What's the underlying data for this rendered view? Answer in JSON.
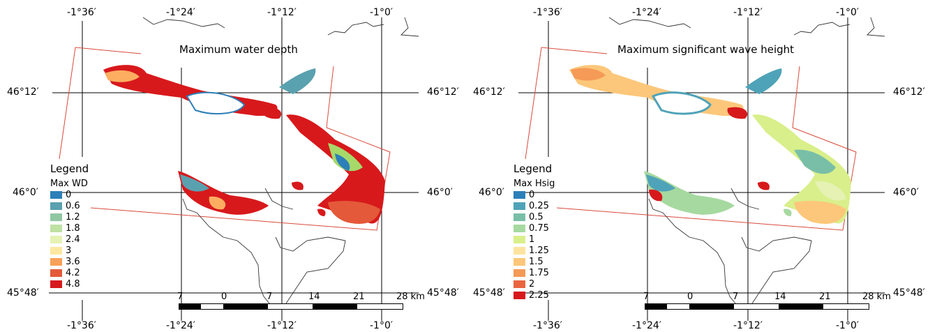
{
  "colors": {
    "grid": "#000000",
    "frame": "#d84a3a",
    "coast": "#333333",
    "wd_core": "#d7191c",
    "wd_mid": "#fdae61",
    "wd_edge": "#2c7fb8",
    "wd_green": "#a6d96a",
    "hs_core": "#f4a582",
    "hs_mid": "#d9ef8b",
    "hs_edge": "#4fa3b8",
    "hs_green": "#91cf60"
  },
  "panels": [
    {
      "title": "Maximum water depth",
      "legend_title": "Legend",
      "legend_subtitle": "Max WD",
      "legend": [
        {
          "label": "0",
          "color": "#2c7fb8"
        },
        {
          "label": "0.6",
          "color": "#5aa1b0"
        },
        {
          "label": "1.2",
          "color": "#8fc7a3"
        },
        {
          "label": "1.8",
          "color": "#bfe1a3"
        },
        {
          "label": "2.4",
          "color": "#e5f2b4"
        },
        {
          "label": "3",
          "color": "#fde8a1"
        },
        {
          "label": "3.6",
          "color": "#f9a059"
        },
        {
          "label": "4.2",
          "color": "#e4593a"
        },
        {
          "label": "4.8",
          "color": "#d7191c"
        }
      ],
      "top_lon": [
        "-1°36′",
        "-1°24′",
        "-1°12′",
        "-1°0′"
      ],
      "bottom_lon": [
        "-1°36′",
        "-1°24′",
        "-1°12′",
        "-1°0′"
      ],
      "left_lat": [
        "46°12′",
        "46°0′",
        "45°48′"
      ],
      "right_lat": [
        "46°12′",
        "46°0′",
        "45°48′"
      ],
      "scale_labels": [
        "7",
        "0",
        "7",
        "14",
        "21",
        "28 km"
      ]
    },
    {
      "title": "Maximum significant wave height",
      "legend_title": "Legend",
      "legend_subtitle": "Max Hsig",
      "legend": [
        {
          "label": "0",
          "color": "#2c7fb8"
        },
        {
          "label": "0.25",
          "color": "#4fa3b8"
        },
        {
          "label": "0.5",
          "color": "#79bfa8"
        },
        {
          "label": "0.75",
          "color": "#a6d9a0"
        },
        {
          "label": "1",
          "color": "#d9ef8b"
        },
        {
          "label": "1.25",
          "color": "#fde3a0"
        },
        {
          "label": "1.5",
          "color": "#fcc77a"
        },
        {
          "label": "1.75",
          "color": "#f59a57"
        },
        {
          "label": "2",
          "color": "#ea6440"
        },
        {
          "label": "2.25",
          "color": "#d7191c"
        }
      ],
      "top_lon": [
        "-1°36′",
        "-1°24′",
        "-1°12′",
        "-1°0′"
      ],
      "bottom_lon": [
        "-1°36′",
        "-1°24′",
        "-1°12′",
        "-1°0′"
      ],
      "left_lat": [
        "46°12′",
        "46°0′",
        "45°48′"
      ],
      "right_lat": [
        "46°12′",
        "46°0′",
        "45°48′"
      ],
      "scale_labels": [
        "7",
        "0",
        "7",
        "14",
        "21",
        "28 km"
      ]
    }
  ]
}
